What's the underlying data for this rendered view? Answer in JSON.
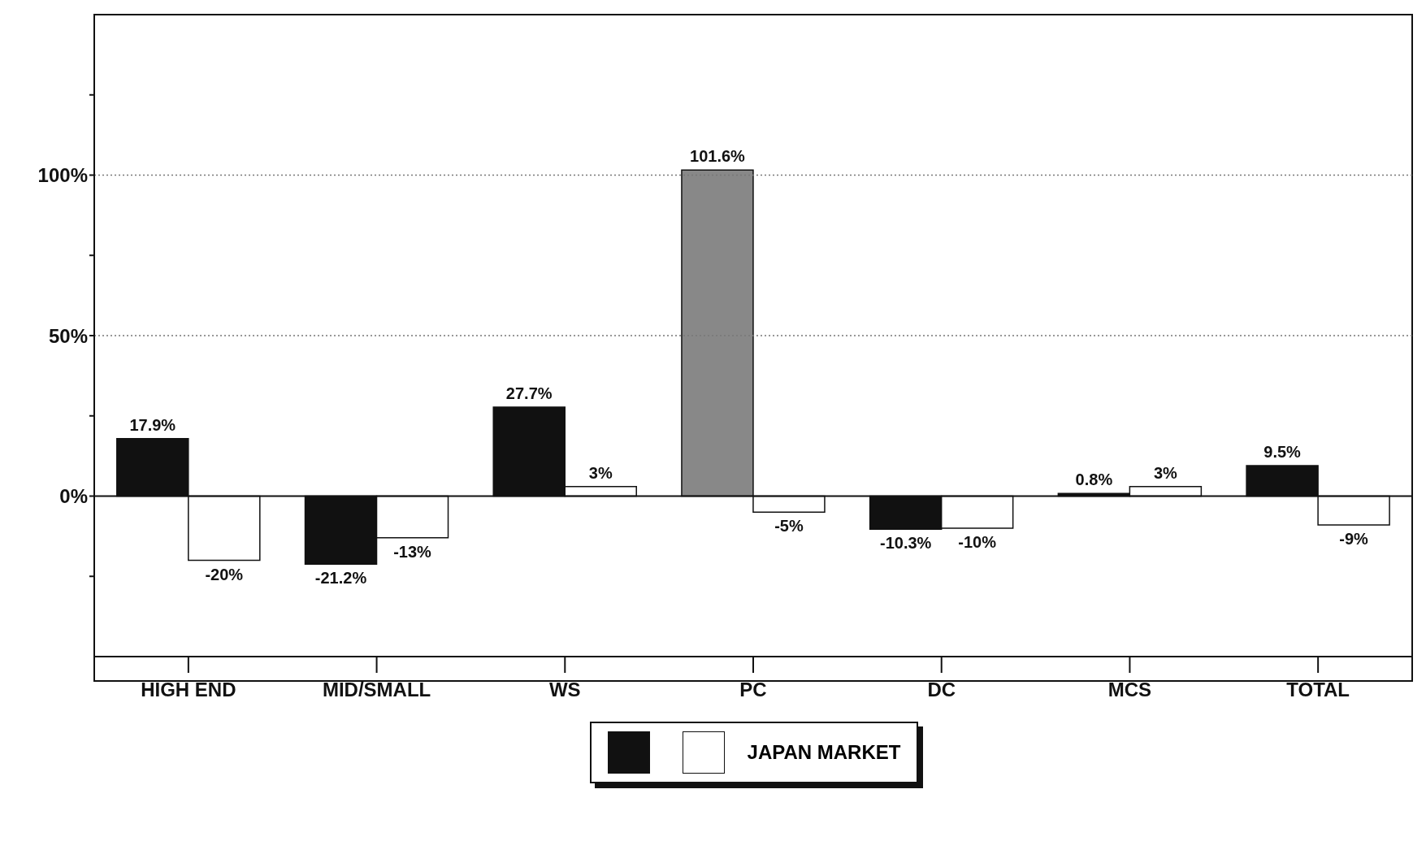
{
  "chart_data": {
    "type": "bar",
    "categories": [
      "HIGH END",
      "MID/SMALL",
      "WS",
      "PC",
      "DC",
      "MCS",
      "TOTAL"
    ],
    "series": [
      {
        "color": "#111111",
        "colors": [
          "#111111",
          "#111111",
          "#111111",
          "#888888",
          "#111111",
          "#111111",
          "#111111"
        ],
        "values": [
          17.9,
          -21.2,
          27.7,
          101.6,
          -10.3,
          0.8,
          9.5
        ],
        "value_labels": [
          "17.9%",
          "-21.2%",
          "27.7%",
          "101.6%",
          "-10.3%",
          "0.8%",
          "9.5%"
        ]
      },
      {
        "name": "JAPAN MARKET",
        "color": "#ffffff",
        "values": [
          -20,
          -13,
          3,
          -5,
          -10,
          3,
          -9
        ],
        "value_labels": [
          "-20%",
          "-13%",
          "3%",
          "-5%",
          "-10%",
          "3%",
          "-9%"
        ]
      }
    ],
    "ylim": [
      -50,
      150
    ],
    "yticks": [
      {
        "value": -25,
        "label": null
      },
      {
        "value": 0,
        "label": "0%"
      },
      {
        "value": 25,
        "label": null
      },
      {
        "value": 50,
        "label": "50%"
      },
      {
        "value": 75,
        "label": null
      },
      {
        "value": 100,
        "label": "100%"
      },
      {
        "value": 125,
        "label": null
      }
    ],
    "ref_lines": [
      {
        "axis": "y",
        "value": 0,
        "line_style": "solid",
        "color": "#111111"
      },
      {
        "axis": "y",
        "value": 50,
        "line_style": "dotted",
        "color": "#777777"
      },
      {
        "axis": "y",
        "value": 100,
        "line_style": "dotted",
        "color": "#777777"
      }
    ],
    "legend": "bottom"
  }
}
